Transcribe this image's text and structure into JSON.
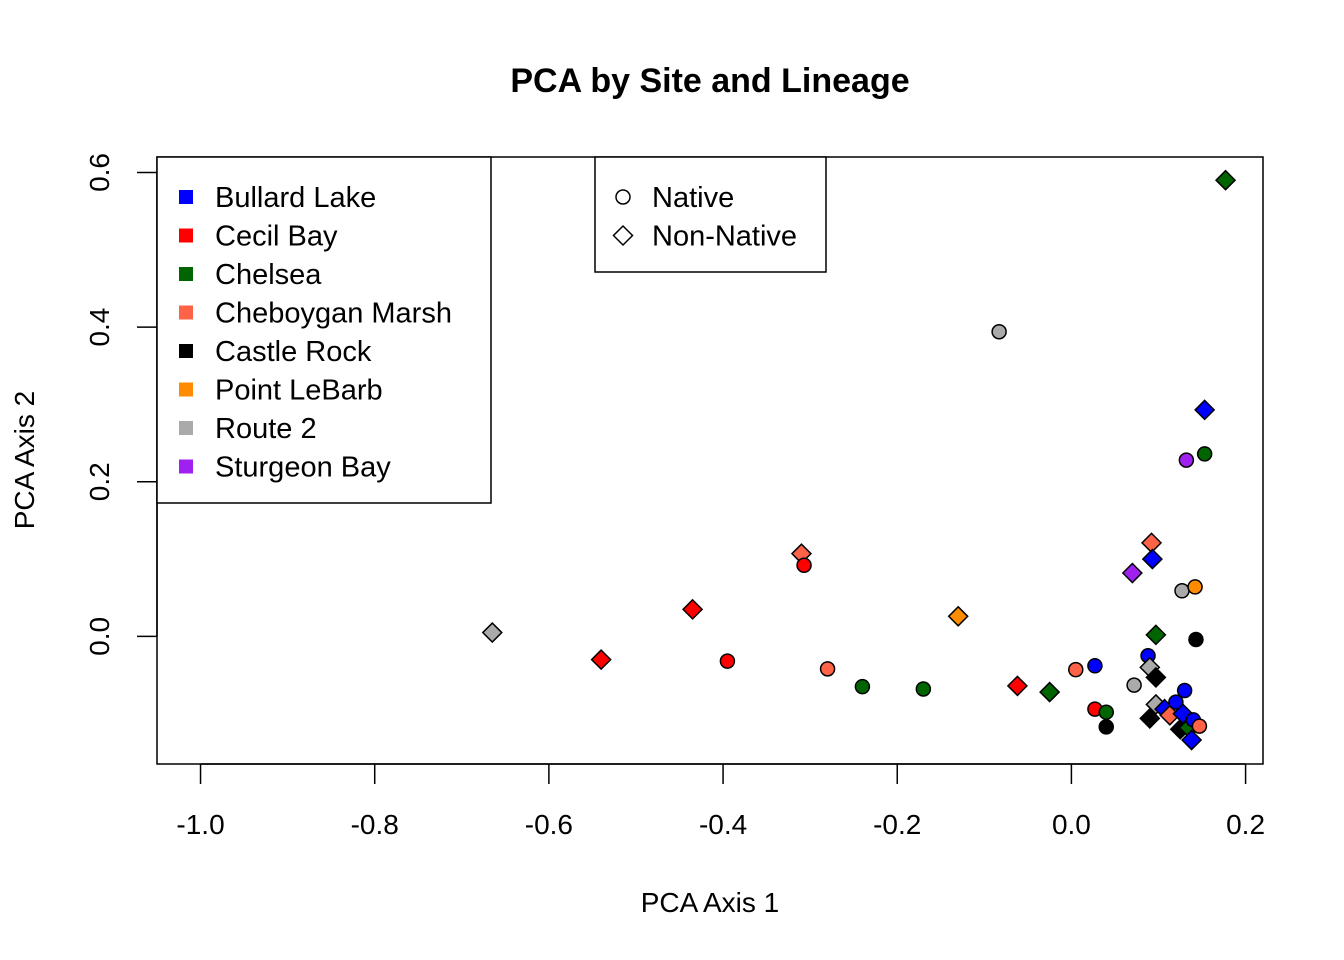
{
  "chart_data": {
    "type": "scatter",
    "title": "PCA by Site and Lineage",
    "xlabel": "PCA Axis 1",
    "ylabel": "PCA Axis 2",
    "xlim": [
      -1.05,
      0.22
    ],
    "ylim": [
      -0.165,
      0.62
    ],
    "x_ticks": [
      -1.0,
      -0.8,
      -0.6,
      -0.4,
      -0.2,
      0.0,
      0.2
    ],
    "x_tick_labels": [
      "-1.0",
      "-0.8",
      "-0.6",
      "-0.4",
      "-0.2",
      "0.0",
      "0.2"
    ],
    "y_ticks": [
      0.0,
      0.2,
      0.4,
      0.6
    ],
    "y_tick_labels": [
      "0.0",
      "0.2",
      "0.4",
      "0.6"
    ],
    "grid": false,
    "site_legend": {
      "placement": "top-left",
      "entries": [
        {
          "name": "Bullard Lake",
          "color": "#0000ff"
        },
        {
          "name": "Cecil Bay",
          "color": "#ff0000"
        },
        {
          "name": "Chelsea",
          "color": "#006400"
        },
        {
          "name": "Cheboygan Marsh",
          "color": "#ff6347"
        },
        {
          "name": "Castle Rock",
          "color": "#000000"
        },
        {
          "name": "Point LeBarb",
          "color": "#ff8c00"
        },
        {
          "name": "Route 2",
          "color": "#aaaaaa"
        },
        {
          "name": "Sturgeon Bay",
          "color": "#a020f0"
        }
      ]
    },
    "lineage_legend": {
      "placement": "top-center",
      "entries": [
        {
          "name": "Native",
          "shape": "circle"
        },
        {
          "name": "Non-Native",
          "shape": "diamond"
        }
      ]
    },
    "points": [
      {
        "x": -0.665,
        "y": 0.005,
        "site": "Route 2",
        "lineage": "Non-Native"
      },
      {
        "x": -0.54,
        "y": -0.03,
        "site": "Cecil Bay",
        "lineage": "Non-Native"
      },
      {
        "x": -0.435,
        "y": 0.035,
        "site": "Cecil Bay",
        "lineage": "Non-Native"
      },
      {
        "x": -0.395,
        "y": -0.032,
        "site": "Cecil Bay",
        "lineage": "Native"
      },
      {
        "x": -0.31,
        "y": 0.107,
        "site": "Cheboygan Marsh",
        "lineage": "Non-Native"
      },
      {
        "x": -0.307,
        "y": 0.092,
        "site": "Cecil Bay",
        "lineage": "Native"
      },
      {
        "x": -0.28,
        "y": -0.042,
        "site": "Cheboygan Marsh",
        "lineage": "Native"
      },
      {
        "x": -0.24,
        "y": -0.065,
        "site": "Chelsea",
        "lineage": "Native"
      },
      {
        "x": -0.17,
        "y": -0.068,
        "site": "Chelsea",
        "lineage": "Native"
      },
      {
        "x": -0.13,
        "y": 0.026,
        "site": "Point LeBarb",
        "lineage": "Non-Native"
      },
      {
        "x": -0.083,
        "y": 0.394,
        "site": "Route 2",
        "lineage": "Native"
      },
      {
        "x": -0.062,
        "y": -0.064,
        "site": "Cecil Bay",
        "lineage": "Non-Native"
      },
      {
        "x": -0.025,
        "y": -0.072,
        "site": "Chelsea",
        "lineage": "Non-Native"
      },
      {
        "x": 0.005,
        "y": -0.043,
        "site": "Cheboygan Marsh",
        "lineage": "Native"
      },
      {
        "x": 0.027,
        "y": -0.094,
        "site": "Cecil Bay",
        "lineage": "Native"
      },
      {
        "x": 0.027,
        "y": -0.038,
        "site": "Bullard Lake",
        "lineage": "Native"
      },
      {
        "x": 0.04,
        "y": -0.098,
        "site": "Chelsea",
        "lineage": "Native"
      },
      {
        "x": 0.04,
        "y": -0.117,
        "site": "Castle Rock",
        "lineage": "Native"
      },
      {
        "x": 0.07,
        "y": 0.082,
        "site": "Sturgeon Bay",
        "lineage": "Non-Native"
      },
      {
        "x": 0.072,
        "y": -0.063,
        "site": "Route 2",
        "lineage": "Native"
      },
      {
        "x": 0.088,
        "y": -0.025,
        "site": "Bullard Lake",
        "lineage": "Native"
      },
      {
        "x": 0.09,
        "y": -0.04,
        "site": "Route 2",
        "lineage": "Non-Native"
      },
      {
        "x": 0.09,
        "y": -0.106,
        "site": "Castle Rock",
        "lineage": "Non-Native"
      },
      {
        "x": 0.092,
        "y": 0.121,
        "site": "Cheboygan Marsh",
        "lineage": "Non-Native"
      },
      {
        "x": 0.093,
        "y": 0.1,
        "site": "Bullard Lake",
        "lineage": "Non-Native"
      },
      {
        "x": 0.097,
        "y": 0.002,
        "site": "Chelsea",
        "lineage": "Non-Native"
      },
      {
        "x": 0.097,
        "y": -0.053,
        "site": "Castle Rock",
        "lineage": "Non-Native"
      },
      {
        "x": 0.097,
        "y": -0.088,
        "site": "Route 2",
        "lineage": "Non-Native"
      },
      {
        "x": 0.107,
        "y": -0.094,
        "site": "Bullard Lake",
        "lineage": "Non-Native"
      },
      {
        "x": 0.113,
        "y": -0.102,
        "site": "Cheboygan Marsh",
        "lineage": "Non-Native"
      },
      {
        "x": 0.12,
        "y": -0.085,
        "site": "Bullard Lake",
        "lineage": "Native"
      },
      {
        "x": 0.125,
        "y": -0.12,
        "site": "Castle Rock",
        "lineage": "Non-Native"
      },
      {
        "x": 0.127,
        "y": 0.059,
        "site": "Route 2",
        "lineage": "Native"
      },
      {
        "x": 0.128,
        "y": -0.1,
        "site": "Bullard Lake",
        "lineage": "Non-Native"
      },
      {
        "x": 0.13,
        "y": -0.07,
        "site": "Bullard Lake",
        "lineage": "Native"
      },
      {
        "x": 0.132,
        "y": 0.228,
        "site": "Sturgeon Bay",
        "lineage": "Native"
      },
      {
        "x": 0.135,
        "y": -0.118,
        "site": "Chelsea",
        "lineage": "Non-Native"
      },
      {
        "x": 0.138,
        "y": -0.134,
        "site": "Bullard Lake",
        "lineage": "Non-Native"
      },
      {
        "x": 0.14,
        "y": -0.108,
        "site": "Bullard Lake",
        "lineage": "Native"
      },
      {
        "x": 0.142,
        "y": 0.064,
        "site": "Point LeBarb",
        "lineage": "Native"
      },
      {
        "x": 0.143,
        "y": -0.004,
        "site": "Castle Rock",
        "lineage": "Native"
      },
      {
        "x": 0.147,
        "y": -0.116,
        "site": "Cheboygan Marsh",
        "lineage": "Native"
      },
      {
        "x": 0.153,
        "y": 0.293,
        "site": "Bullard Lake",
        "lineage": "Non-Native"
      },
      {
        "x": 0.153,
        "y": 0.236,
        "site": "Chelsea",
        "lineage": "Native"
      },
      {
        "x": 0.177,
        "y": 0.59,
        "site": "Chelsea",
        "lineage": "Non-Native"
      }
    ]
  }
}
